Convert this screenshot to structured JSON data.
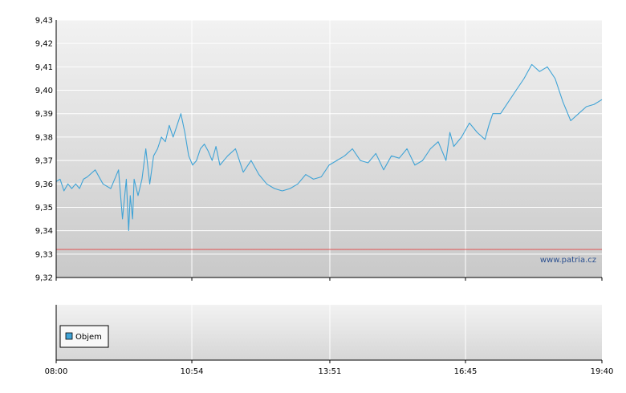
{
  "chart_data": [
    {
      "type": "line",
      "title": "",
      "xlabel": "",
      "ylabel": "",
      "x_ticks": [
        "08:00",
        "10:54",
        "13:51",
        "16:45",
        "19:40"
      ],
      "y_ticks": [
        "9,32",
        "9,33",
        "9,34",
        "9,35",
        "9,36",
        "9,37",
        "9,38",
        "9,39",
        "9,40",
        "9,41",
        "9,42",
        "9,43"
      ],
      "ylim": [
        9.32,
        9.43
      ],
      "xlim": [
        "08:00",
        "19:40"
      ],
      "grid": true,
      "watermark": "www.patria.cz",
      "reference_line": {
        "y": 9.332,
        "color": "#e05050"
      },
      "series": [
        {
          "color": "#3fa3d6",
          "x": [
            "08:00",
            "08:05",
            "08:10",
            "08:15",
            "08:20",
            "08:25",
            "08:30",
            "08:35",
            "08:40",
            "08:50",
            "09:00",
            "09:10",
            "09:20",
            "09:25",
            "09:30",
            "09:33",
            "09:35",
            "09:38",
            "09:40",
            "09:45",
            "09:50",
            "09:55",
            "10:00",
            "10:05",
            "10:10",
            "10:15",
            "10:20",
            "10:25",
            "10:30",
            "10:35",
            "10:40",
            "10:45",
            "10:50",
            "10:55",
            "11:00",
            "11:05",
            "11:10",
            "11:15",
            "11:20",
            "11:25",
            "11:30",
            "11:40",
            "11:50",
            "12:00",
            "12:10",
            "12:20",
            "12:30",
            "12:40",
            "12:50",
            "13:00",
            "13:10",
            "13:20",
            "13:30",
            "13:40",
            "13:50",
            "14:00",
            "14:10",
            "14:20",
            "14:30",
            "14:40",
            "14:50",
            "15:00",
            "15:10",
            "15:20",
            "15:30",
            "15:40",
            "15:50",
            "16:00",
            "16:10",
            "16:20",
            "16:25",
            "16:30",
            "16:40",
            "16:50",
            "17:00",
            "17:10",
            "17:15",
            "17:20",
            "17:30",
            "17:40",
            "17:50",
            "18:00",
            "18:10",
            "18:20",
            "18:30",
            "18:40",
            "18:50",
            "19:00",
            "19:10",
            "19:20",
            "19:30",
            "19:40"
          ],
          "y": [
            9.361,
            9.362,
            9.357,
            9.36,
            9.358,
            9.36,
            9.358,
            9.362,
            9.363,
            9.366,
            9.36,
            9.358,
            9.366,
            9.345,
            9.362,
            9.34,
            9.355,
            9.345,
            9.362,
            9.355,
            9.362,
            9.375,
            9.36,
            9.372,
            9.375,
            9.38,
            9.378,
            9.385,
            9.38,
            9.385,
            9.39,
            9.382,
            9.372,
            9.368,
            9.37,
            9.375,
            9.377,
            9.374,
            9.37,
            9.376,
            9.368,
            9.372,
            9.375,
            9.365,
            9.37,
            9.364,
            9.36,
            9.358,
            9.357,
            9.358,
            9.36,
            9.364,
            9.362,
            9.363,
            9.368,
            9.37,
            9.372,
            9.375,
            9.37,
            9.369,
            9.373,
            9.366,
            9.372,
            9.371,
            9.375,
            9.368,
            9.37,
            9.375,
            9.378,
            9.37,
            9.382,
            9.376,
            9.38,
            9.386,
            9.382,
            9.379,
            9.385,
            9.39,
            9.39,
            9.395,
            9.4,
            9.405,
            9.411,
            9.408,
            9.41,
            9.405,
            9.395,
            9.387,
            9.39,
            9.393,
            9.394,
            9.396
          ]
        }
      ]
    },
    {
      "type": "bar",
      "title": "",
      "legend": [
        "Objem"
      ],
      "legend_position": "bottom-left",
      "legend_color": "#3fa3d6",
      "x_ticks": [
        "08:00",
        "10:54",
        "13:51",
        "16:45",
        "19:40"
      ],
      "grid": true
    }
  ]
}
